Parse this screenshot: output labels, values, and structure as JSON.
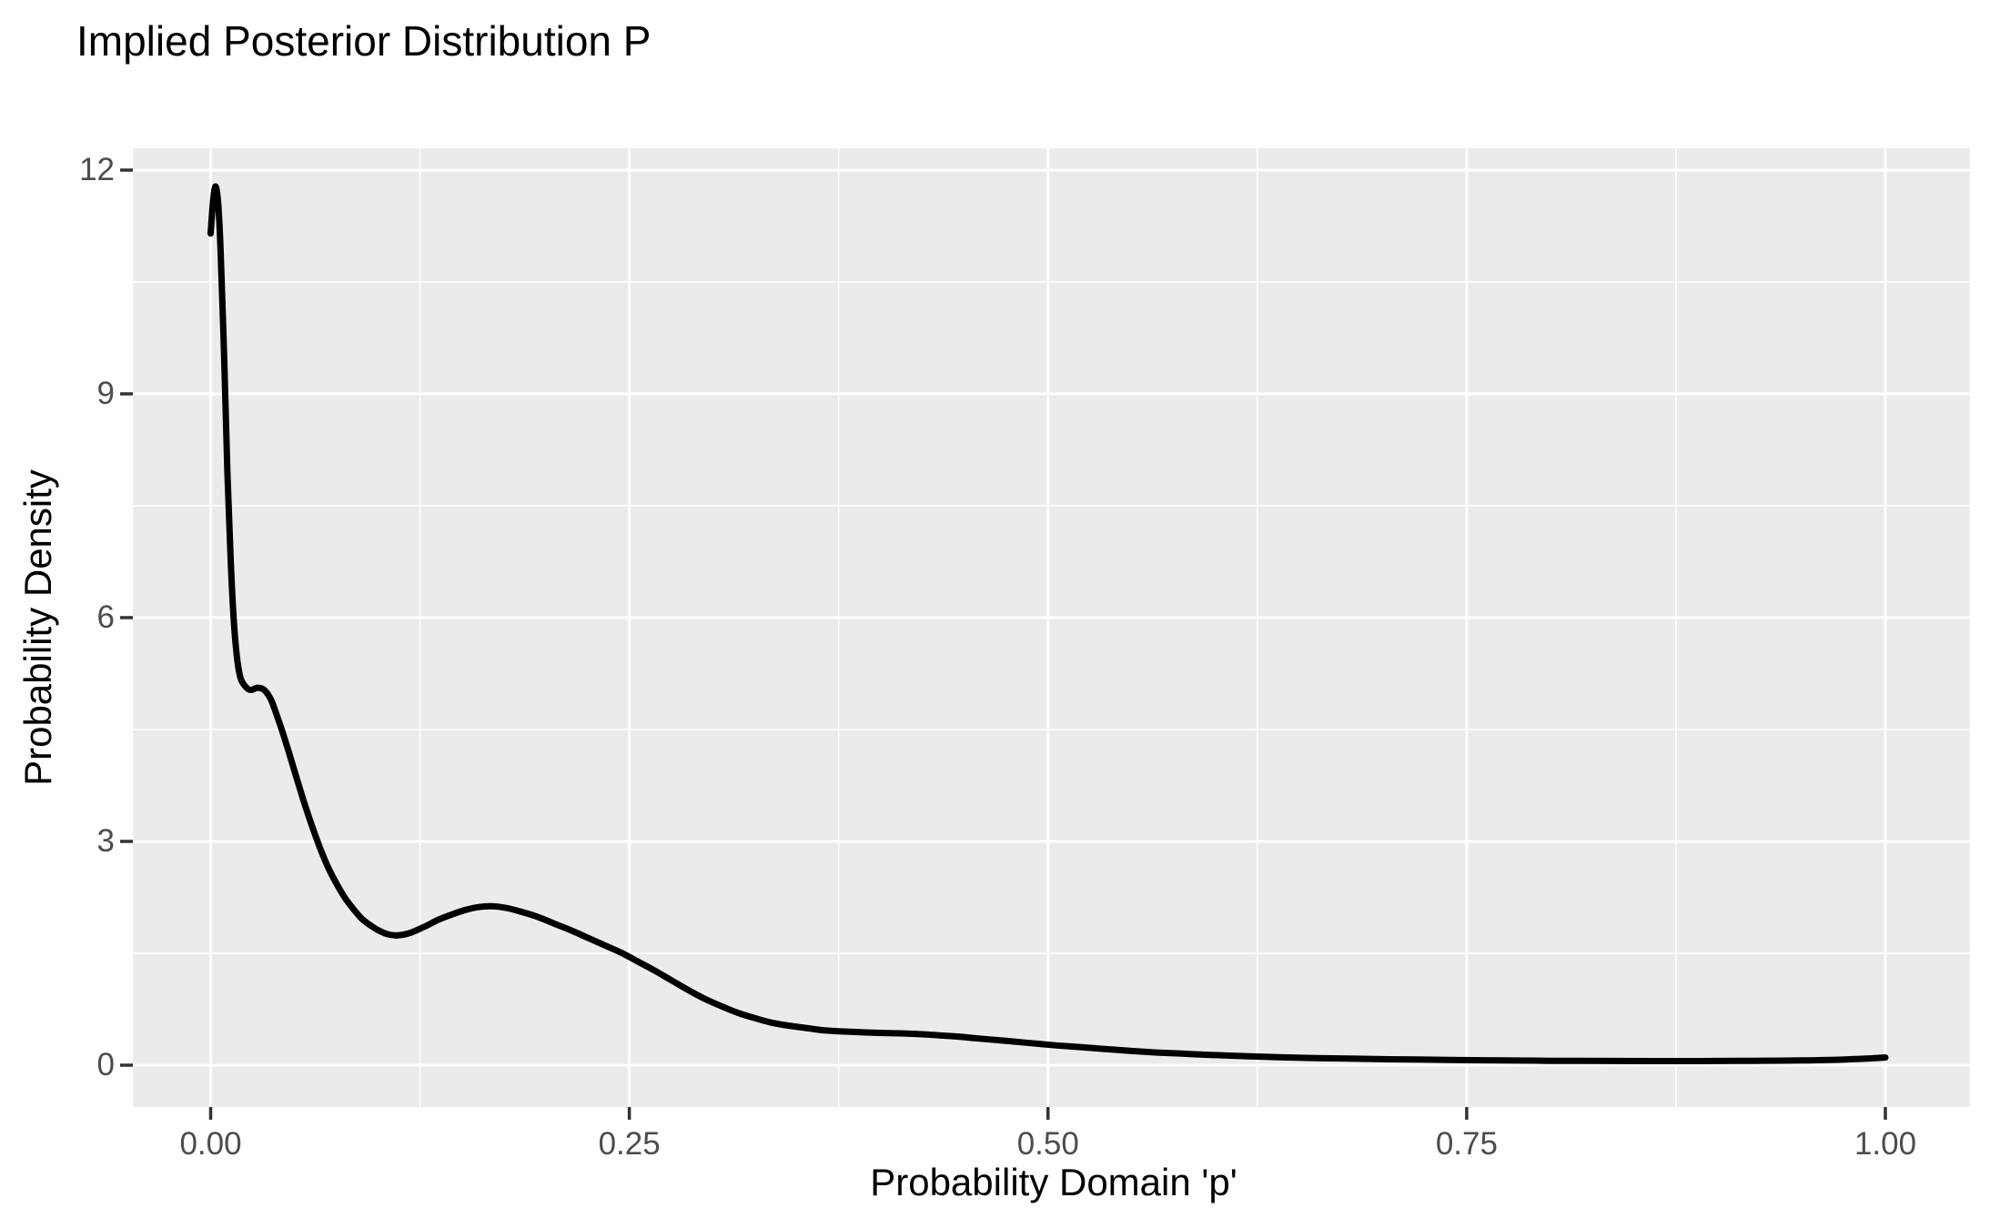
{
  "colors": {
    "figure_background": "#FFFFFF",
    "panel_background": "#EBEBEB",
    "gridline": "#FFFFFF",
    "curve": "#000000",
    "tick_mark": "#333333",
    "tick_label": "#4D4D4D",
    "title_text": "#000000"
  },
  "chart_data": {
    "type": "line",
    "title": "Implied Posterior Distribution P",
    "xlabel": "Probability Domain 'p'",
    "ylabel": "Probability Density",
    "legend": "none",
    "grid": "white major and minor gridlines on gray panel",
    "xlim": [
      0,
      1
    ],
    "ylim": [
      0,
      12
    ],
    "x_ticks": {
      "values": [
        0,
        0.25,
        0.5,
        0.75,
        1.0
      ],
      "labels": [
        "0.00",
        "0.25",
        "0.50",
        "0.75",
        "1.00"
      ]
    },
    "y_ticks": {
      "values": [
        0,
        3,
        6,
        9,
        12
      ],
      "labels": [
        "0",
        "3",
        "6",
        "9",
        "12"
      ]
    },
    "x_minor_ticks": [
      0.125,
      0.375,
      0.625,
      0.875
    ],
    "y_minor_ticks": [
      1.5,
      4.5,
      7.5,
      10.5
    ],
    "series": [
      {
        "name": "posterior-density-curve",
        "points": [
          [
            0.0,
            11.15
          ],
          [
            0.0015,
            11.6
          ],
          [
            0.003,
            11.78
          ],
          [
            0.0045,
            11.55
          ],
          [
            0.006,
            10.9
          ],
          [
            0.008,
            9.55
          ],
          [
            0.01,
            7.95
          ],
          [
            0.012,
            6.75
          ],
          [
            0.014,
            5.9
          ],
          [
            0.016,
            5.42
          ],
          [
            0.018,
            5.18
          ],
          [
            0.021,
            5.07
          ],
          [
            0.024,
            5.03
          ],
          [
            0.028,
            5.06
          ],
          [
            0.032,
            5.03
          ],
          [
            0.036,
            4.9
          ],
          [
            0.04,
            4.66
          ],
          [
            0.045,
            4.32
          ],
          [
            0.05,
            3.95
          ],
          [
            0.055,
            3.58
          ],
          [
            0.06,
            3.24
          ],
          [
            0.065,
            2.93
          ],
          [
            0.07,
            2.66
          ],
          [
            0.075,
            2.44
          ],
          [
            0.08,
            2.25
          ],
          [
            0.085,
            2.1
          ],
          [
            0.09,
            1.97
          ],
          [
            0.095,
            1.88
          ],
          [
            0.1,
            1.81
          ],
          [
            0.105,
            1.76
          ],
          [
            0.11,
            1.74
          ],
          [
            0.115,
            1.75
          ],
          [
            0.12,
            1.78
          ],
          [
            0.128,
            1.86
          ],
          [
            0.136,
            1.95
          ],
          [
            0.144,
            2.02
          ],
          [
            0.152,
            2.08
          ],
          [
            0.16,
            2.12
          ],
          [
            0.168,
            2.13
          ],
          [
            0.176,
            2.11
          ],
          [
            0.185,
            2.06
          ],
          [
            0.195,
            1.99
          ],
          [
            0.205,
            1.9
          ],
          [
            0.215,
            1.81
          ],
          [
            0.225,
            1.71
          ],
          [
            0.235,
            1.61
          ],
          [
            0.245,
            1.51
          ],
          [
            0.255,
            1.39
          ],
          [
            0.265,
            1.27
          ],
          [
            0.275,
            1.14
          ],
          [
            0.285,
            1.01
          ],
          [
            0.295,
            0.89
          ],
          [
            0.305,
            0.79
          ],
          [
            0.315,
            0.7
          ],
          [
            0.325,
            0.63
          ],
          [
            0.335,
            0.57
          ],
          [
            0.345,
            0.53
          ],
          [
            0.355,
            0.5
          ],
          [
            0.365,
            0.47
          ],
          [
            0.375,
            0.455
          ],
          [
            0.385,
            0.445
          ],
          [
            0.395,
            0.435
          ],
          [
            0.405,
            0.43
          ],
          [
            0.415,
            0.425
          ],
          [
            0.425,
            0.415
          ],
          [
            0.435,
            0.4
          ],
          [
            0.445,
            0.385
          ],
          [
            0.455,
            0.365
          ],
          [
            0.465,
            0.345
          ],
          [
            0.475,
            0.325
          ],
          [
            0.49,
            0.295
          ],
          [
            0.505,
            0.265
          ],
          [
            0.52,
            0.24
          ],
          [
            0.535,
            0.215
          ],
          [
            0.55,
            0.19
          ],
          [
            0.565,
            0.17
          ],
          [
            0.58,
            0.155
          ],
          [
            0.6,
            0.135
          ],
          [
            0.62,
            0.12
          ],
          [
            0.64,
            0.105
          ],
          [
            0.66,
            0.095
          ],
          [
            0.68,
            0.088
          ],
          [
            0.7,
            0.08
          ],
          [
            0.72,
            0.075
          ],
          [
            0.74,
            0.07
          ],
          [
            0.76,
            0.066
          ],
          [
            0.78,
            0.062
          ],
          [
            0.8,
            0.059
          ],
          [
            0.82,
            0.057
          ],
          [
            0.84,
            0.056
          ],
          [
            0.86,
            0.055
          ],
          [
            0.88,
            0.055
          ],
          [
            0.9,
            0.056
          ],
          [
            0.92,
            0.058
          ],
          [
            0.94,
            0.061
          ],
          [
            0.955,
            0.065
          ],
          [
            0.97,
            0.072
          ],
          [
            0.98,
            0.08
          ],
          [
            0.99,
            0.09
          ],
          [
            1.0,
            0.103
          ]
        ]
      }
    ]
  }
}
